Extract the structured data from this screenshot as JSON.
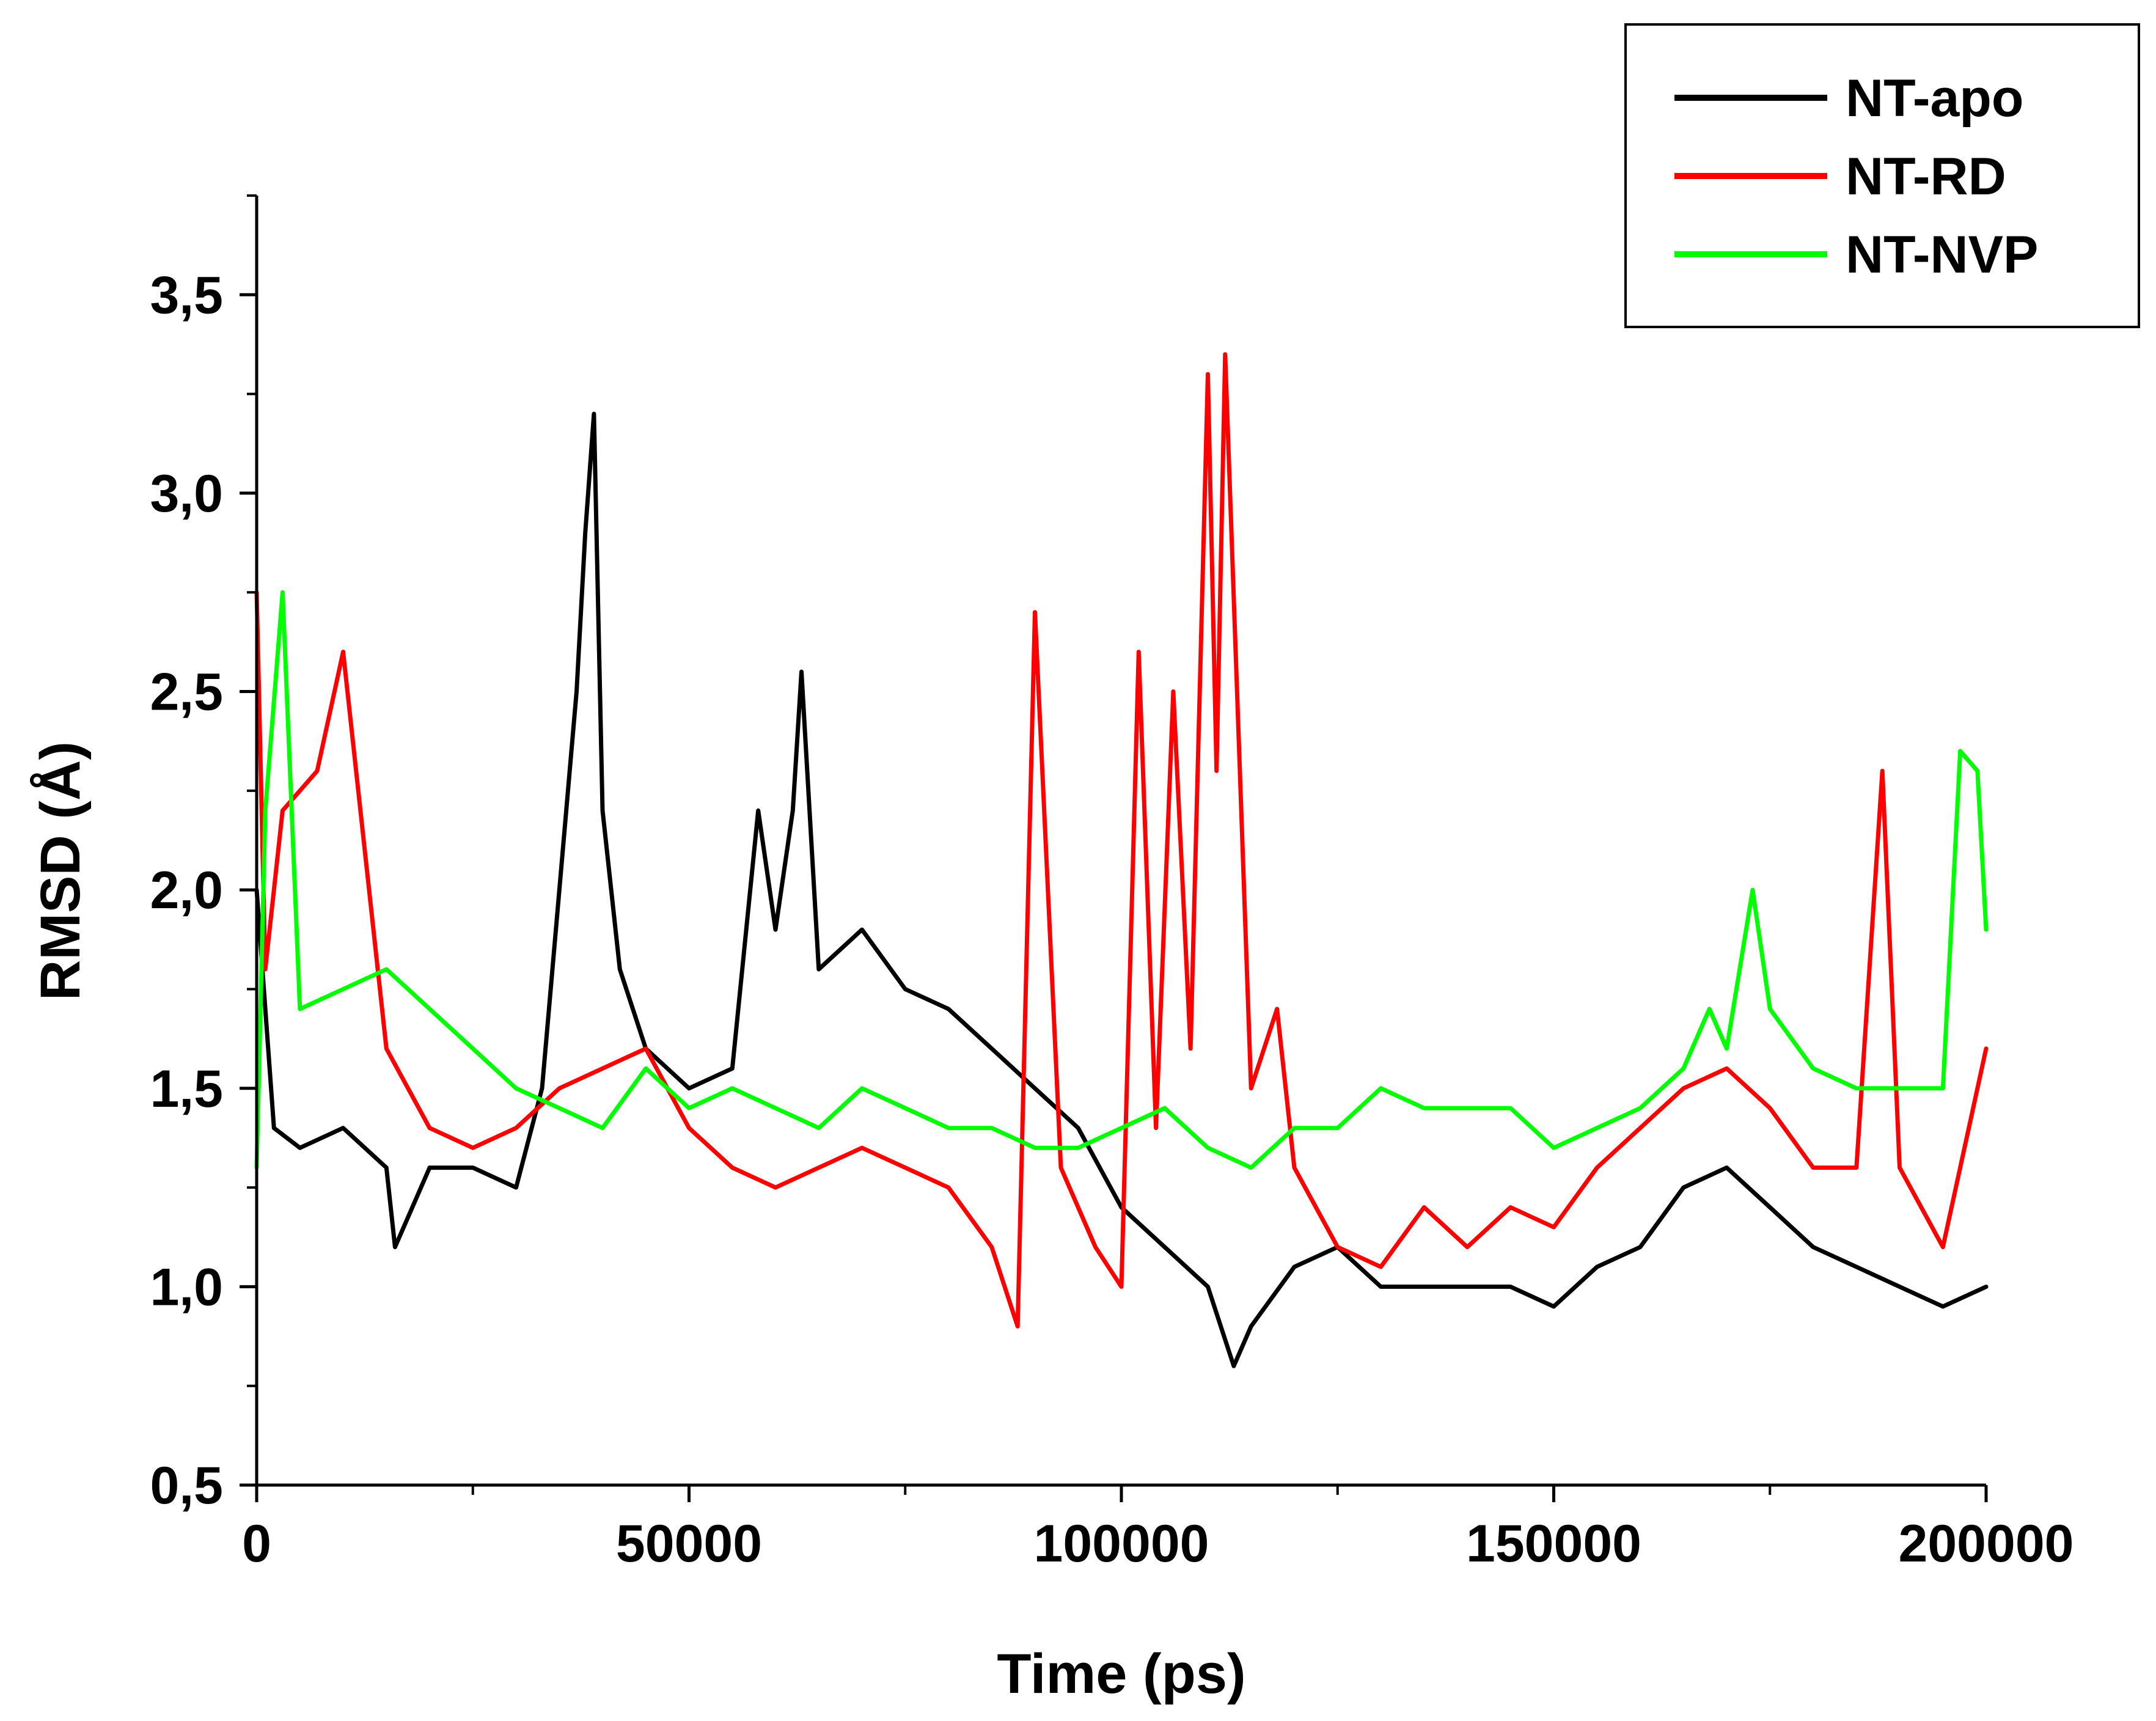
{
  "chart_data": {
    "type": "line",
    "title": "",
    "xlabel": "Time (ps)",
    "ylabel": "RMSD (Å)",
    "xlim": [
      0,
      200000
    ],
    "ylim": [
      0.5,
      3.75
    ],
    "x_ticks": [
      {
        "value": 0,
        "label": "0"
      },
      {
        "value": 50000,
        "label": "50000"
      },
      {
        "value": 100000,
        "label": "100000"
      },
      {
        "value": 150000,
        "label": "150000"
      },
      {
        "value": 200000,
        "label": "200000"
      }
    ],
    "x_minor_ticks": [
      25000,
      75000,
      125000,
      175000
    ],
    "y_ticks": [
      {
        "value": 0.5,
        "label": "0,5"
      },
      {
        "value": 1.0,
        "label": "1,0"
      },
      {
        "value": 1.5,
        "label": "1,5"
      },
      {
        "value": 2.0,
        "label": "2,0"
      },
      {
        "value": 2.5,
        "label": "2,5"
      },
      {
        "value": 3.0,
        "label": "3,0"
      },
      {
        "value": 3.5,
        "label": "3,5"
      }
    ],
    "y_minor_ticks": [
      0.75,
      1.25,
      1.75,
      2.25,
      2.75,
      3.25,
      3.75
    ],
    "grid": false,
    "legend_position": "top-right",
    "series": [
      {
        "name": "NT-apo",
        "color": "#000000",
        "x": [
          0,
          2000,
          5000,
          10000,
          15000,
          16000,
          20000,
          25000,
          30000,
          33000,
          35000,
          37000,
          38000,
          39000,
          40000,
          42000,
          45000,
          50000,
          55000,
          58000,
          60000,
          62000,
          63000,
          65000,
          70000,
          75000,
          80000,
          85000,
          90000,
          95000,
          100000,
          105000,
          110000,
          113000,
          115000,
          120000,
          125000,
          130000,
          135000,
          140000,
          145000,
          150000,
          155000,
          160000,
          165000,
          170000,
          175000,
          180000,
          185000,
          190000,
          195000,
          200000
        ],
        "values": [
          2.0,
          1.4,
          1.35,
          1.4,
          1.3,
          1.1,
          1.3,
          1.3,
          1.25,
          1.5,
          2.0,
          2.5,
          2.9,
          3.2,
          2.2,
          1.8,
          1.6,
          1.5,
          1.55,
          2.2,
          1.9,
          2.2,
          2.55,
          1.8,
          1.9,
          1.75,
          1.7,
          1.6,
          1.5,
          1.4,
          1.2,
          1.1,
          1.0,
          0.8,
          0.9,
          1.05,
          1.1,
          1.0,
          1.0,
          1.0,
          1.0,
          0.95,
          1.05,
          1.1,
          1.25,
          1.3,
          1.2,
          1.1,
          1.05,
          1.0,
          0.95,
          1.0
        ]
      },
      {
        "name": "NT-RD",
        "color": "#ff0000",
        "x": [
          0,
          1000,
          3000,
          7000,
          10000,
          12000,
          15000,
          20000,
          25000,
          30000,
          35000,
          40000,
          45000,
          50000,
          55000,
          60000,
          65000,
          70000,
          75000,
          80000,
          85000,
          88000,
          90000,
          93000,
          97000,
          100000,
          102000,
          104000,
          106000,
          108000,
          110000,
          111000,
          112000,
          115000,
          118000,
          120000,
          125000,
          130000,
          135000,
          140000,
          145000,
          150000,
          155000,
          160000,
          165000,
          170000,
          175000,
          180000,
          185000,
          188000,
          190000,
          195000,
          200000
        ],
        "values": [
          2.75,
          1.8,
          2.2,
          2.3,
          2.6,
          2.2,
          1.6,
          1.4,
          1.35,
          1.4,
          1.5,
          1.55,
          1.6,
          1.4,
          1.3,
          1.25,
          1.3,
          1.35,
          1.3,
          1.25,
          1.1,
          0.9,
          2.7,
          1.3,
          1.1,
          1.0,
          2.6,
          1.4,
          2.5,
          1.6,
          3.3,
          2.3,
          3.35,
          1.5,
          1.7,
          1.3,
          1.1,
          1.05,
          1.2,
          1.1,
          1.2,
          1.15,
          1.3,
          1.4,
          1.5,
          1.55,
          1.45,
          1.3,
          1.3,
          2.3,
          1.3,
          1.1,
          1.6
        ]
      },
      {
        "name": "NT-NVP",
        "color": "#00ff00",
        "x": [
          0,
          1000,
          3000,
          5000,
          10000,
          15000,
          20000,
          25000,
          30000,
          35000,
          40000,
          45000,
          50000,
          55000,
          60000,
          65000,
          70000,
          75000,
          80000,
          85000,
          90000,
          95000,
          100000,
          105000,
          110000,
          115000,
          120000,
          125000,
          130000,
          135000,
          140000,
          145000,
          150000,
          155000,
          160000,
          165000,
          168000,
          170000,
          173000,
          175000,
          180000,
          185000,
          190000,
          195000,
          197000,
          199000,
          200000
        ],
        "values": [
          1.3,
          2.2,
          2.75,
          1.7,
          1.75,
          1.8,
          1.7,
          1.6,
          1.5,
          1.45,
          1.4,
          1.55,
          1.45,
          1.5,
          1.45,
          1.4,
          1.5,
          1.45,
          1.4,
          1.4,
          1.35,
          1.35,
          1.4,
          1.45,
          1.35,
          1.3,
          1.4,
          1.4,
          1.5,
          1.45,
          1.45,
          1.45,
          1.35,
          1.4,
          1.45,
          1.55,
          1.7,
          1.6,
          2.0,
          1.7,
          1.55,
          1.5,
          1.5,
          1.5,
          2.35,
          2.3,
          1.9
        ]
      }
    ]
  }
}
